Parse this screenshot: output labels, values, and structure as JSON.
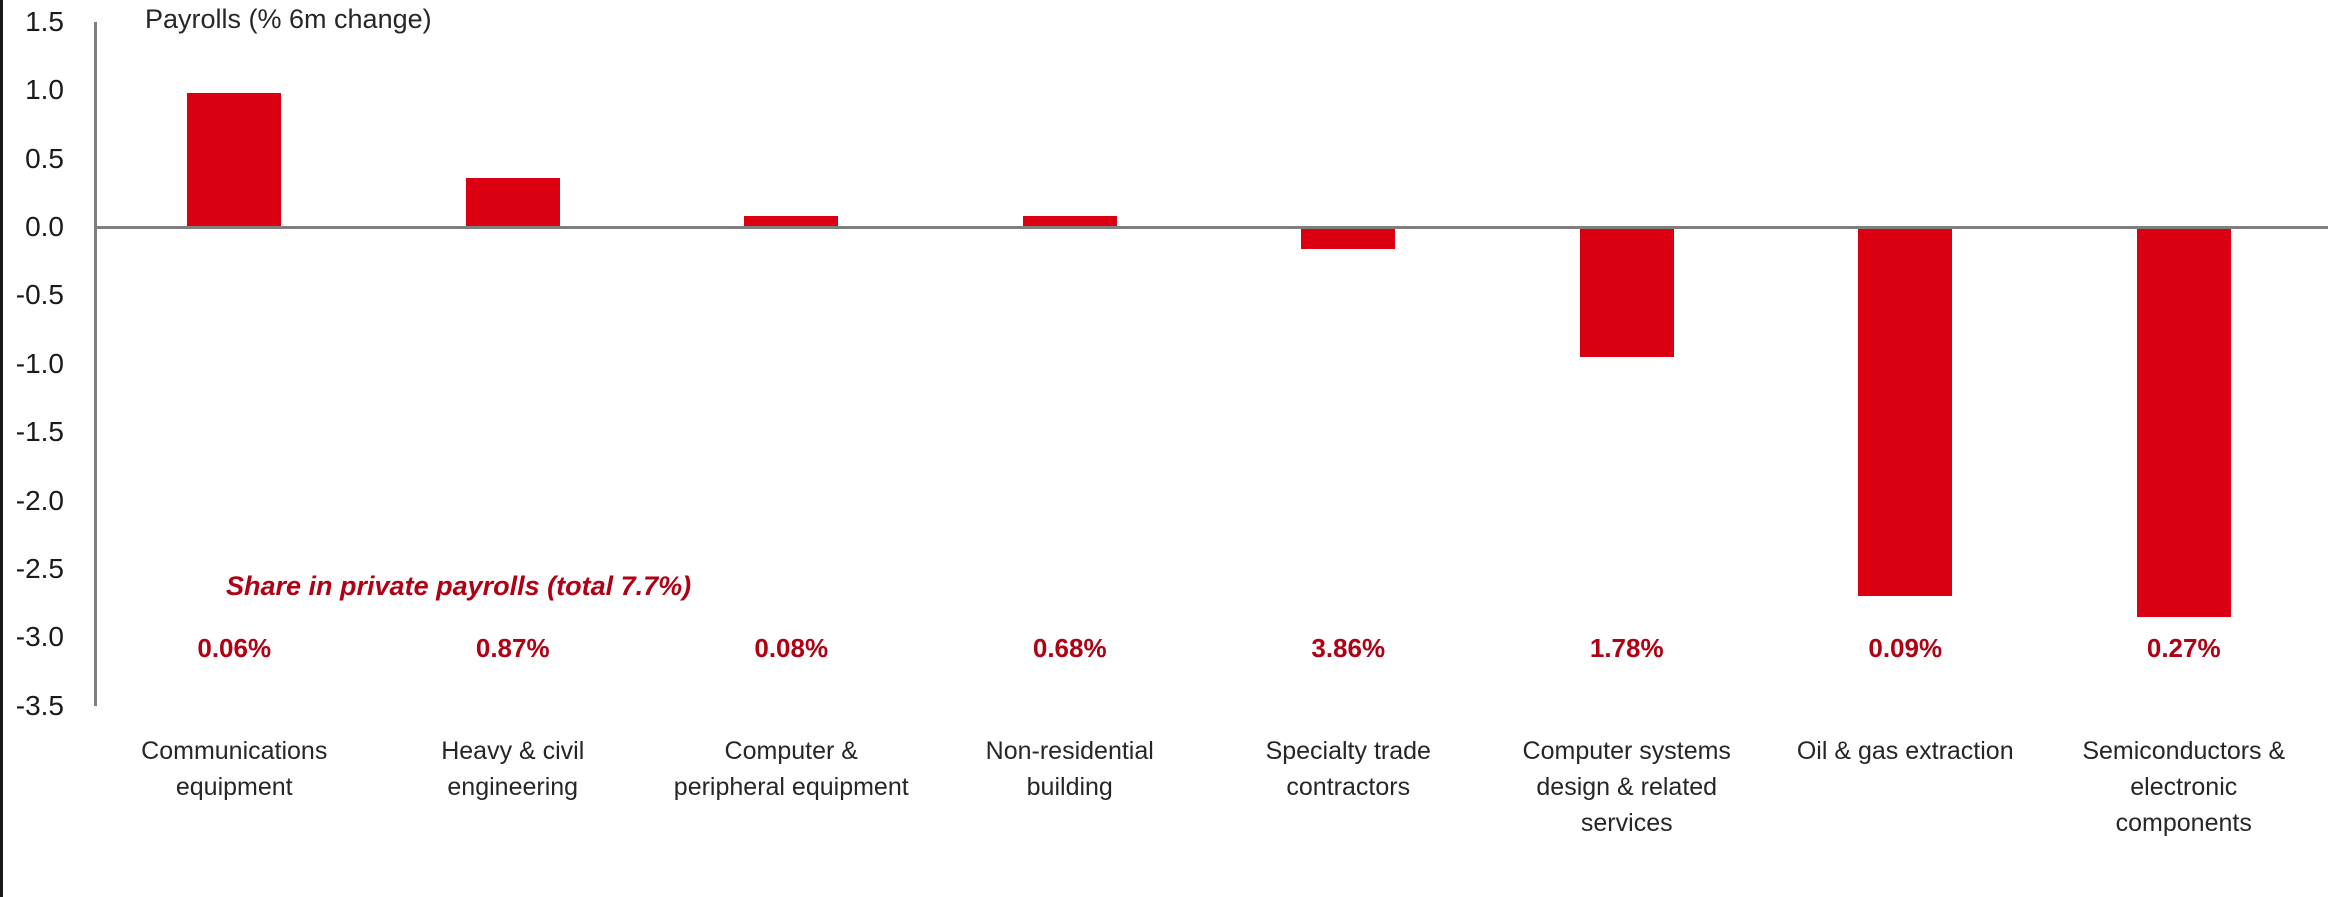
{
  "chart_data": {
    "type": "bar",
    "title": "Payrolls (% 6m change)",
    "annotation": "Share in private payrolls (total 7.7%)",
    "categories": [
      "Communications equipment",
      "Heavy & civil engineering",
      "Computer & peripheral equipment",
      "Non-residential building",
      "Specialty trade contractors",
      "Computer systems design & related services",
      "Oil & gas extraction",
      "Semiconductors & electronic components"
    ],
    "category_lines": [
      [
        "Communications",
        "equipment"
      ],
      [
        "Heavy & civil",
        "engineering"
      ],
      [
        "Computer &",
        "peripheral equipment"
      ],
      [
        "Non-residential",
        "building"
      ],
      [
        "Specialty trade",
        "contractors"
      ],
      [
        "Computer systems",
        "design & related",
        "services"
      ],
      [
        "Oil & gas extraction"
      ],
      [
        "Semiconductors &",
        "electronic",
        "components"
      ]
    ],
    "values": [
      0.98,
      0.36,
      0.08,
      0.08,
      -0.16,
      -0.95,
      -2.7,
      -2.85
    ],
    "share_labels": [
      "0.06%",
      "0.87%",
      "0.08%",
      "0.68%",
      "3.86%",
      "1.78%",
      "0.09%",
      "0.27%"
    ],
    "y_ticks": [
      "1.5",
      "1.0",
      "0.5",
      "0.0",
      "-0.5",
      "-1.0",
      "-1.5",
      "-2.0",
      "-2.5",
      "-3.0",
      "-3.5"
    ],
    "ylim": [
      -3.5,
      1.5
    ],
    "xlabel": "",
    "ylabel": "",
    "grid": false,
    "legend": false,
    "colors": {
      "bar": "#db0011",
      "red_text": "#b00014",
      "axis": "#7f7f7f",
      "text": "#262626"
    }
  }
}
